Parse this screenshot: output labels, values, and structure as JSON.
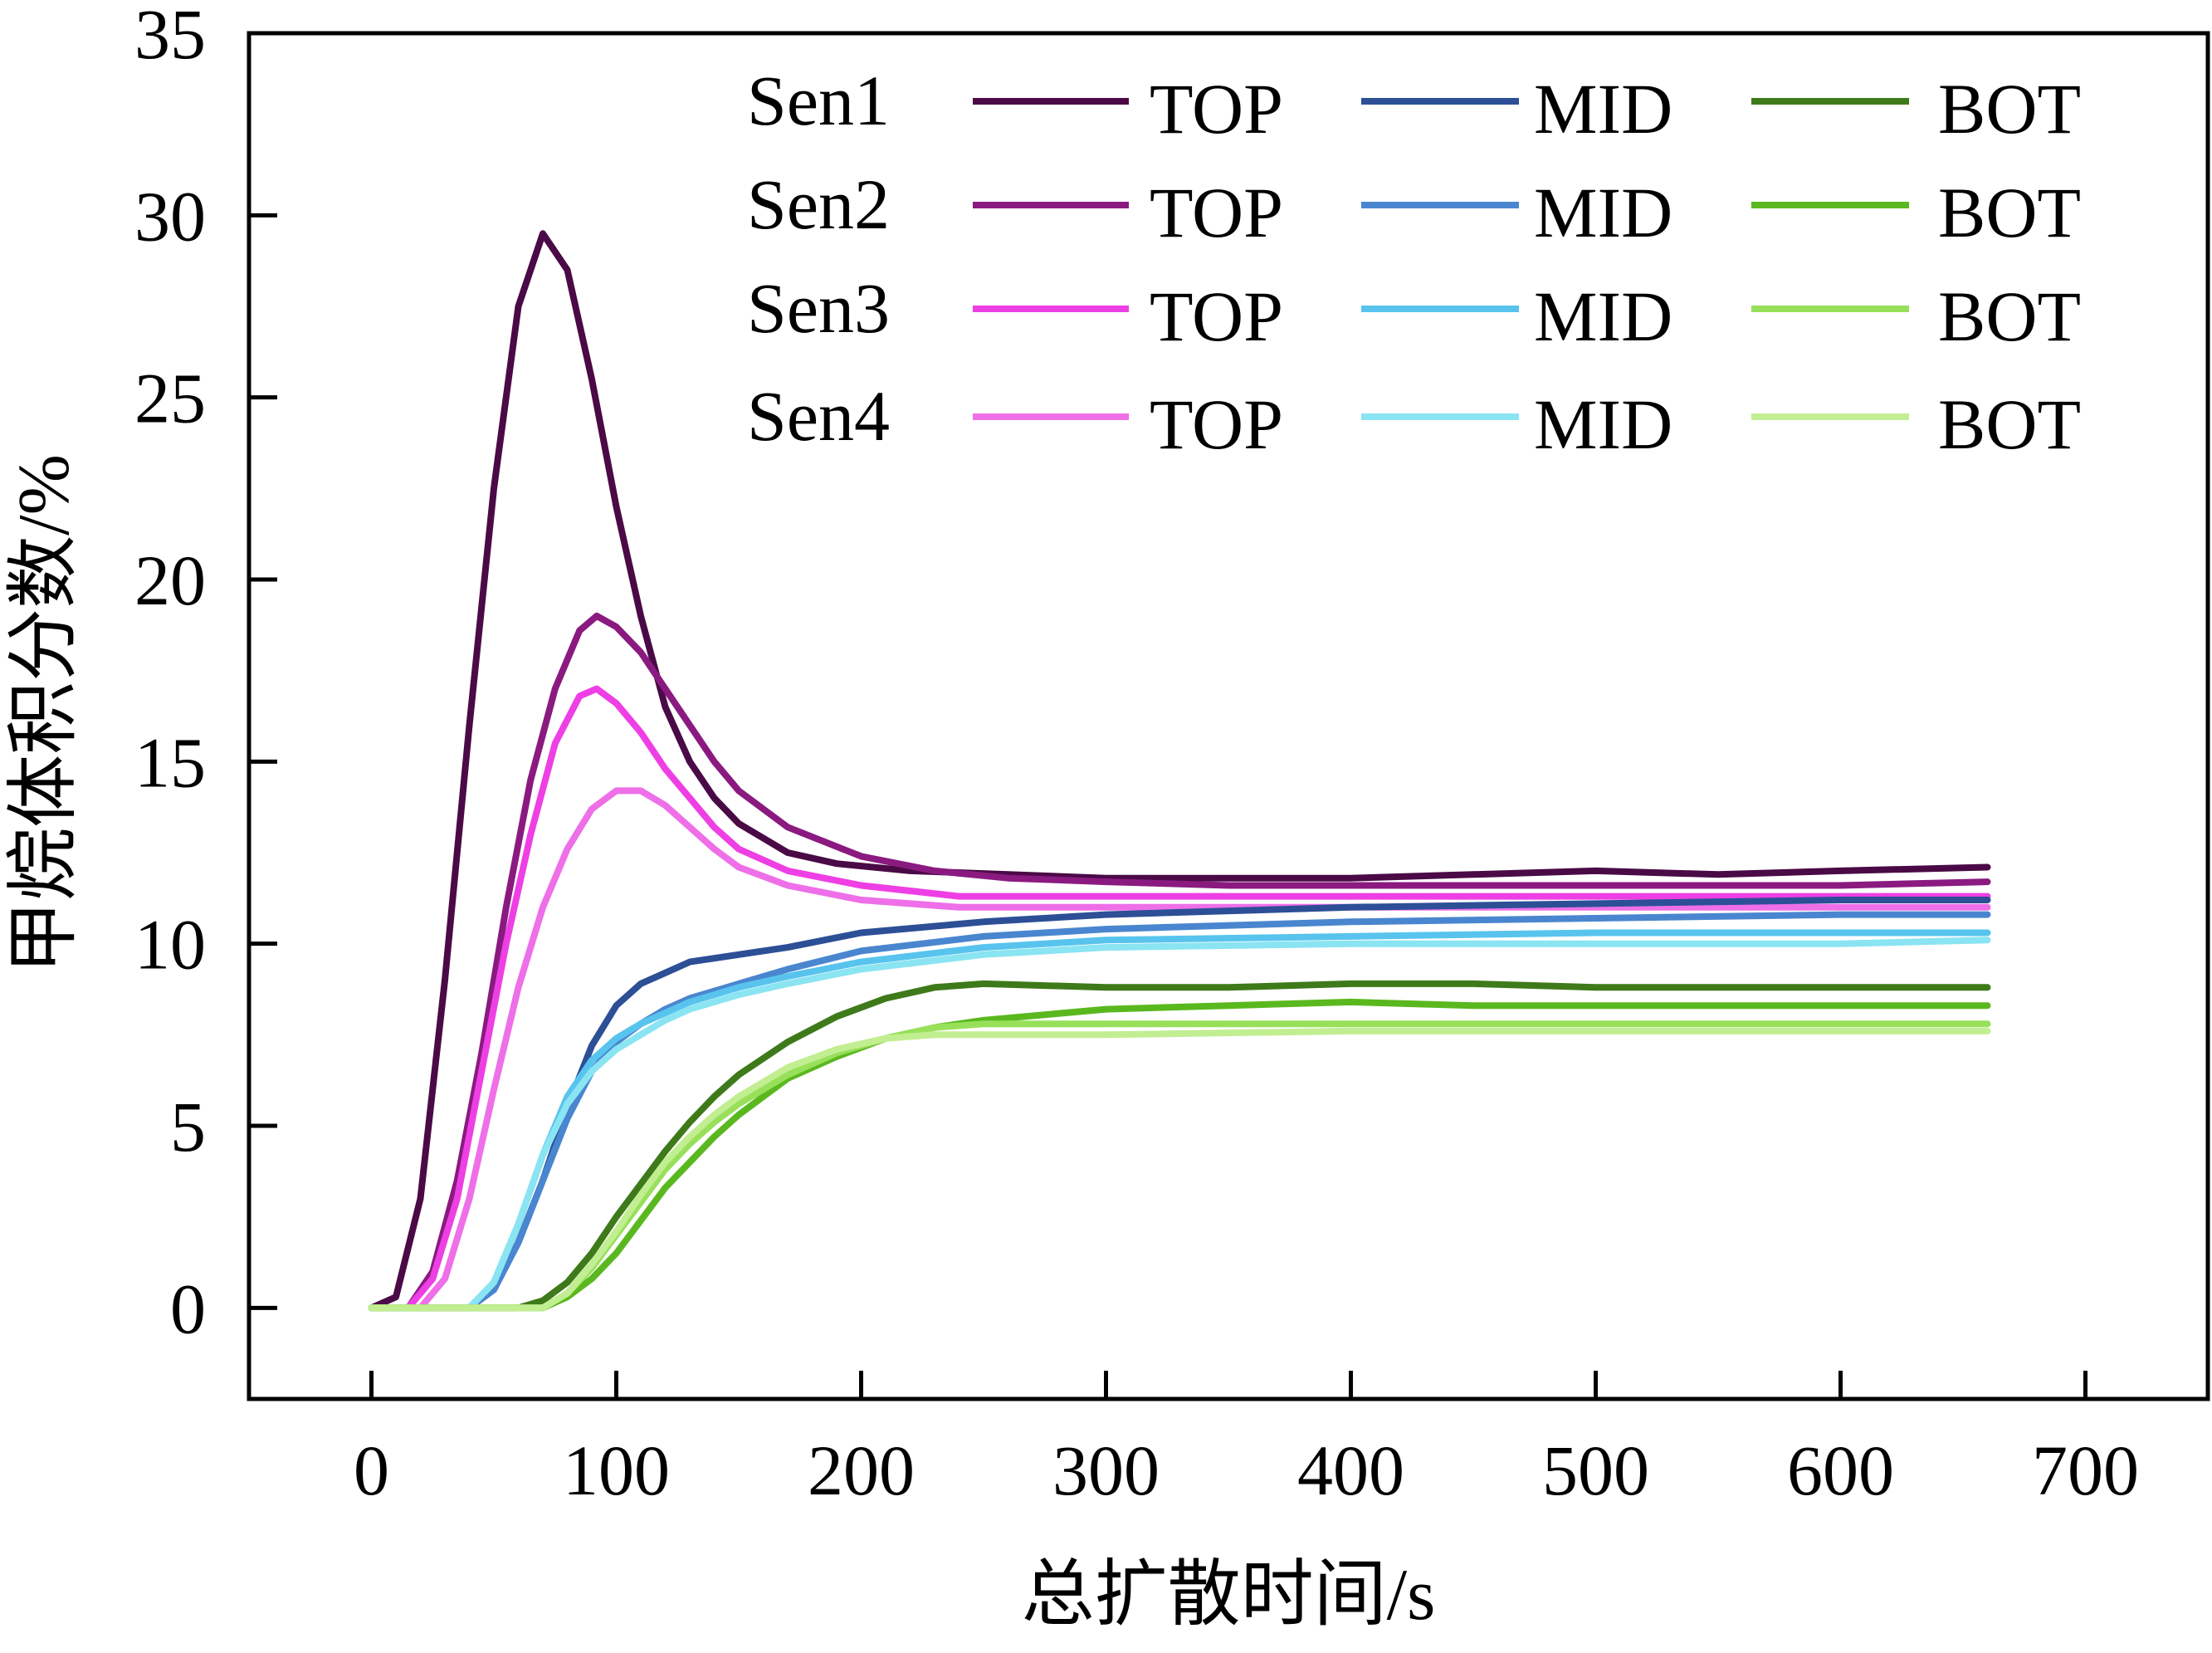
{
  "chart_data": {
    "type": "line",
    "xlabel": "总扩散时间/s",
    "ylabel": "甲烷体积分数/%",
    "xlim": [
      -50,
      750
    ],
    "ylim": [
      -2.5,
      35
    ],
    "xticks": [
      0,
      100,
      200,
      300,
      400,
      500,
      600,
      700
    ],
    "yticks": [
      0,
      5,
      10,
      15,
      20,
      25,
      30,
      35
    ],
    "grid": false,
    "legend_placement": "top-right",
    "legend": {
      "rows": [
        "Sen1",
        "Sen2",
        "Sen3",
        "Sen4"
      ],
      "columns": [
        "TOP",
        "MID",
        "BOT"
      ]
    },
    "series": [
      {
        "sensor": "Sen1",
        "position": "TOP",
        "color": "#4a0a46",
        "points": [
          [
            0,
            0
          ],
          [
            10,
            0.3
          ],
          [
            20,
            3
          ],
          [
            30,
            9
          ],
          [
            40,
            16
          ],
          [
            50,
            22.5
          ],
          [
            60,
            27.5
          ],
          [
            70,
            29.5
          ],
          [
            80,
            28.5
          ],
          [
            90,
            25.5
          ],
          [
            100,
            22
          ],
          [
            110,
            19
          ],
          [
            120,
            16.5
          ],
          [
            130,
            15
          ],
          [
            140,
            14
          ],
          [
            150,
            13.3
          ],
          [
            170,
            12.5
          ],
          [
            190,
            12.2
          ],
          [
            220,
            12
          ],
          [
            260,
            11.9
          ],
          [
            300,
            11.8
          ],
          [
            400,
            11.8
          ],
          [
            450,
            11.9
          ],
          [
            500,
            12
          ],
          [
            550,
            11.9
          ],
          [
            600,
            12
          ],
          [
            660,
            12.1
          ]
        ]
      },
      {
        "sensor": "Sen2",
        "position": "TOP",
        "color": "#8a1a80",
        "points": [
          [
            0,
            0
          ],
          [
            15,
            0
          ],
          [
            25,
            1
          ],
          [
            35,
            3.5
          ],
          [
            45,
            7
          ],
          [
            55,
            11
          ],
          [
            65,
            14.5
          ],
          [
            75,
            17
          ],
          [
            85,
            18.6
          ],
          [
            92,
            19
          ],
          [
            100,
            18.7
          ],
          [
            110,
            18
          ],
          [
            120,
            17
          ],
          [
            130,
            16
          ],
          [
            140,
            15
          ],
          [
            150,
            14.2
          ],
          [
            170,
            13.2
          ],
          [
            200,
            12.4
          ],
          [
            230,
            12
          ],
          [
            260,
            11.8
          ],
          [
            300,
            11.7
          ],
          [
            350,
            11.6
          ],
          [
            400,
            11.6
          ],
          [
            500,
            11.6
          ],
          [
            600,
            11.6
          ],
          [
            660,
            11.7
          ]
        ]
      },
      {
        "sensor": "Sen3",
        "position": "TOP",
        "color": "#ee3fe4",
        "points": [
          [
            0,
            0
          ],
          [
            15,
            0
          ],
          [
            25,
            0.8
          ],
          [
            35,
            3
          ],
          [
            45,
            6.5
          ],
          [
            55,
            10
          ],
          [
            65,
            13
          ],
          [
            75,
            15.5
          ],
          [
            85,
            16.8
          ],
          [
            92,
            17
          ],
          [
            100,
            16.6
          ],
          [
            110,
            15.8
          ],
          [
            120,
            14.8
          ],
          [
            130,
            14
          ],
          [
            140,
            13.2
          ],
          [
            150,
            12.6
          ],
          [
            170,
            12
          ],
          [
            200,
            11.6
          ],
          [
            240,
            11.3
          ],
          [
            300,
            11.3
          ],
          [
            400,
            11.3
          ],
          [
            500,
            11.3
          ],
          [
            600,
            11.3
          ],
          [
            660,
            11.3
          ]
        ]
      },
      {
        "sensor": "Sen4",
        "position": "TOP",
        "color": "#ee6fe8",
        "points": [
          [
            0,
            0
          ],
          [
            20,
            0
          ],
          [
            30,
            0.8
          ],
          [
            40,
            3
          ],
          [
            50,
            6
          ],
          [
            60,
            8.8
          ],
          [
            70,
            11
          ],
          [
            80,
            12.6
          ],
          [
            90,
            13.7
          ],
          [
            100,
            14.2
          ],
          [
            110,
            14.2
          ],
          [
            120,
            13.8
          ],
          [
            130,
            13.2
          ],
          [
            140,
            12.6
          ],
          [
            150,
            12.1
          ],
          [
            170,
            11.6
          ],
          [
            200,
            11.2
          ],
          [
            240,
            11
          ],
          [
            300,
            11
          ],
          [
            400,
            11
          ],
          [
            500,
            11
          ],
          [
            600,
            11
          ],
          [
            660,
            11
          ]
        ]
      },
      {
        "sensor": "Sen1",
        "position": "MID",
        "color": "#2c4f96",
        "points": [
          [
            0,
            0
          ],
          [
            40,
            0
          ],
          [
            50,
            0.5
          ],
          [
            60,
            1.8
          ],
          [
            70,
            3.5
          ],
          [
            80,
            5.5
          ],
          [
            90,
            7.2
          ],
          [
            100,
            8.3
          ],
          [
            110,
            8.9
          ],
          [
            120,
            9.2
          ],
          [
            130,
            9.5
          ],
          [
            150,
            9.7
          ],
          [
            170,
            9.9
          ],
          [
            200,
            10.3
          ],
          [
            250,
            10.6
          ],
          [
            300,
            10.8
          ],
          [
            400,
            11
          ],
          [
            500,
            11.1
          ],
          [
            600,
            11.2
          ],
          [
            660,
            11.2
          ]
        ]
      },
      {
        "sensor": "Sen2",
        "position": "MID",
        "color": "#4a86cf",
        "points": [
          [
            0,
            0
          ],
          [
            40,
            0
          ],
          [
            50,
            0.5
          ],
          [
            60,
            1.8
          ],
          [
            70,
            3.5
          ],
          [
            80,
            5.2
          ],
          [
            90,
            6.5
          ],
          [
            100,
            7.3
          ],
          [
            110,
            7.8
          ],
          [
            120,
            8.2
          ],
          [
            130,
            8.5
          ],
          [
            150,
            8.9
          ],
          [
            170,
            9.3
          ],
          [
            200,
            9.8
          ],
          [
            250,
            10.2
          ],
          [
            300,
            10.4
          ],
          [
            400,
            10.6
          ],
          [
            500,
            10.7
          ],
          [
            600,
            10.8
          ],
          [
            660,
            10.8
          ]
        ]
      },
      {
        "sensor": "Sen3",
        "position": "MID",
        "color": "#58c4ee",
        "points": [
          [
            0,
            0
          ],
          [
            40,
            0
          ],
          [
            50,
            0.7
          ],
          [
            60,
            2.3
          ],
          [
            70,
            4.2
          ],
          [
            80,
            5.8
          ],
          [
            90,
            6.8
          ],
          [
            100,
            7.4
          ],
          [
            110,
            7.8
          ],
          [
            120,
            8.1
          ],
          [
            130,
            8.4
          ],
          [
            150,
            8.8
          ],
          [
            170,
            9.1
          ],
          [
            200,
            9.5
          ],
          [
            250,
            9.9
          ],
          [
            300,
            10.1
          ],
          [
            400,
            10.2
          ],
          [
            500,
            10.3
          ],
          [
            600,
            10.3
          ],
          [
            660,
            10.3
          ]
        ]
      },
      {
        "sensor": "Sen4",
        "position": "MID",
        "color": "#8ae4f2",
        "points": [
          [
            0,
            0
          ],
          [
            40,
            0
          ],
          [
            50,
            0.7
          ],
          [
            60,
            2.3
          ],
          [
            70,
            4.2
          ],
          [
            80,
            5.6
          ],
          [
            90,
            6.5
          ],
          [
            100,
            7.1
          ],
          [
            110,
            7.5
          ],
          [
            120,
            7.9
          ],
          [
            130,
            8.2
          ],
          [
            150,
            8.6
          ],
          [
            170,
            8.9
          ],
          [
            200,
            9.3
          ],
          [
            250,
            9.7
          ],
          [
            300,
            9.9
          ],
          [
            400,
            10
          ],
          [
            500,
            10
          ],
          [
            600,
            10
          ],
          [
            660,
            10.1
          ]
        ]
      },
      {
        "sensor": "Sen1",
        "position": "BOT",
        "color": "#3e7a1a",
        "points": [
          [
            0,
            0
          ],
          [
            60,
            0
          ],
          [
            70,
            0.2
          ],
          [
            80,
            0.7
          ],
          [
            90,
            1.5
          ],
          [
            100,
            2.5
          ],
          [
            110,
            3.4
          ],
          [
            120,
            4.3
          ],
          [
            130,
            5.1
          ],
          [
            140,
            5.8
          ],
          [
            150,
            6.4
          ],
          [
            170,
            7.3
          ],
          [
            190,
            8
          ],
          [
            210,
            8.5
          ],
          [
            230,
            8.8
          ],
          [
            250,
            8.9
          ],
          [
            300,
            8.8
          ],
          [
            350,
            8.8
          ],
          [
            400,
            8.9
          ],
          [
            450,
            8.9
          ],
          [
            500,
            8.8
          ],
          [
            600,
            8.8
          ],
          [
            660,
            8.8
          ]
        ]
      },
      {
        "sensor": "Sen2",
        "position": "BOT",
        "color": "#5ab81f",
        "points": [
          [
            0,
            0
          ],
          [
            70,
            0
          ],
          [
            80,
            0.3
          ],
          [
            90,
            0.8
          ],
          [
            100,
            1.5
          ],
          [
            110,
            2.4
          ],
          [
            120,
            3.3
          ],
          [
            130,
            4
          ],
          [
            140,
            4.7
          ],
          [
            150,
            5.3
          ],
          [
            170,
            6.3
          ],
          [
            190,
            6.9
          ],
          [
            210,
            7.4
          ],
          [
            230,
            7.7
          ],
          [
            250,
            7.9
          ],
          [
            300,
            8.2
          ],
          [
            350,
            8.3
          ],
          [
            400,
            8.4
          ],
          [
            450,
            8.3
          ],
          [
            500,
            8.3
          ],
          [
            600,
            8.3
          ],
          [
            660,
            8.3
          ]
        ]
      },
      {
        "sensor": "Sen3",
        "position": "BOT",
        "color": "#98e05a",
        "points": [
          [
            0,
            0
          ],
          [
            70,
            0
          ],
          [
            80,
            0.4
          ],
          [
            90,
            1.1
          ],
          [
            100,
            2
          ],
          [
            110,
            2.9
          ],
          [
            120,
            3.8
          ],
          [
            130,
            4.5
          ],
          [
            140,
            5.1
          ],
          [
            150,
            5.6
          ],
          [
            170,
            6.4
          ],
          [
            190,
            7
          ],
          [
            210,
            7.4
          ],
          [
            230,
            7.7
          ],
          [
            250,
            7.8
          ],
          [
            300,
            7.8
          ],
          [
            400,
            7.8
          ],
          [
            500,
            7.8
          ],
          [
            600,
            7.8
          ],
          [
            660,
            7.8
          ]
        ]
      },
      {
        "sensor": "Sen4",
        "position": "BOT",
        "color": "#c2ee92",
        "points": [
          [
            0,
            0
          ],
          [
            70,
            0
          ],
          [
            80,
            0.4
          ],
          [
            90,
            1.2
          ],
          [
            100,
            2.1
          ],
          [
            110,
            3.1
          ],
          [
            120,
            4
          ],
          [
            130,
            4.7
          ],
          [
            140,
            5.3
          ],
          [
            150,
            5.8
          ],
          [
            170,
            6.6
          ],
          [
            190,
            7.1
          ],
          [
            210,
            7.4
          ],
          [
            230,
            7.5
          ],
          [
            250,
            7.5
          ],
          [
            300,
            7.5
          ],
          [
            400,
            7.6
          ],
          [
            500,
            7.6
          ],
          [
            600,
            7.6
          ],
          [
            660,
            7.6
          ]
        ]
      }
    ]
  }
}
